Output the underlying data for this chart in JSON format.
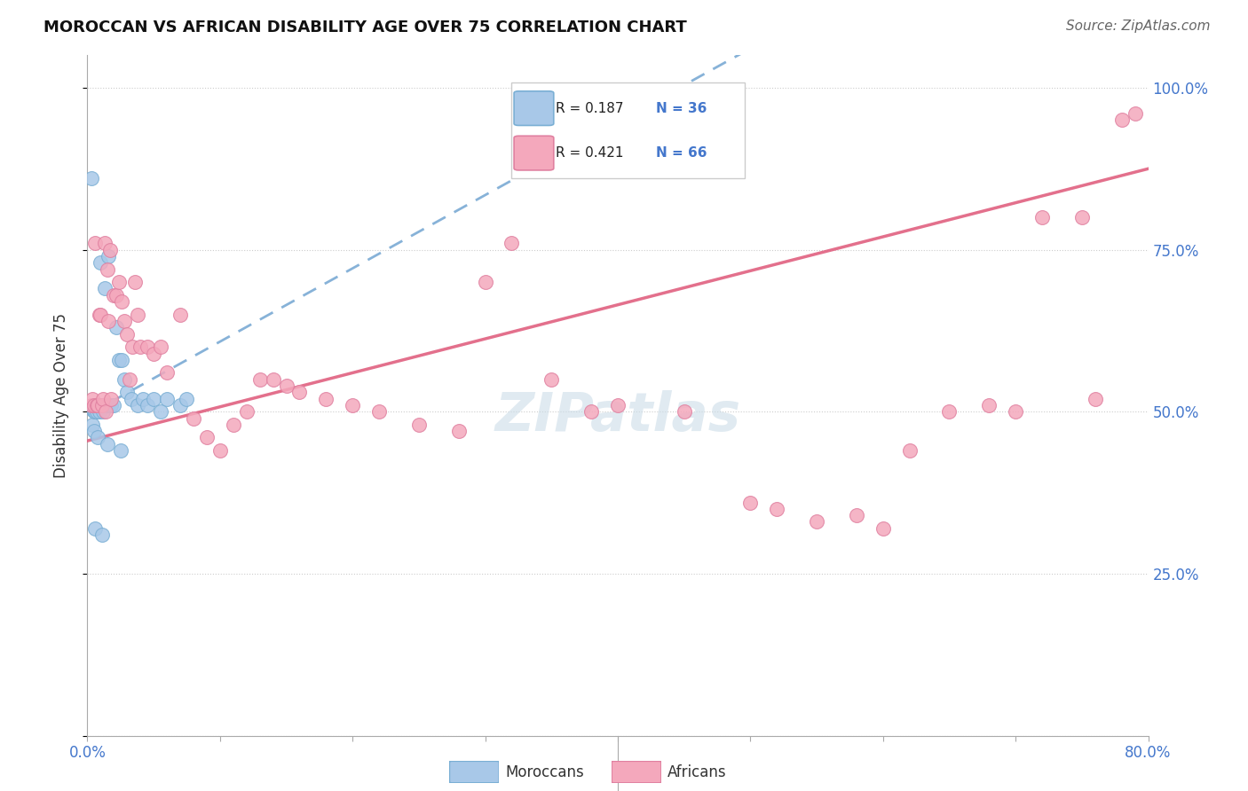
{
  "title": "MOROCCAN VS AFRICAN DISABILITY AGE OVER 75 CORRELATION CHART",
  "source": "Source: ZipAtlas.com",
  "ylabel": "Disability Age Over 75",
  "moroccan_color": "#a8c8e8",
  "moroccan_edge": "#7aafd4",
  "african_color": "#f4a8bc",
  "african_edge": "#e080a0",
  "moroccan_line_color": "#7aaad4",
  "african_line_color": "#e06080",
  "watermark_color": "#ccdde8",
  "label_color": "#4477cc",
  "moroccan_R": "0.187",
  "moroccan_N": "36",
  "african_R": "0.421",
  "african_N": "66",
  "moroccans_x": [
    0.3,
    0.4,
    0.5,
    0.5,
    0.6,
    0.6,
    0.7,
    0.8,
    0.9,
    1.0,
    1.0,
    1.1,
    1.2,
    1.3,
    1.5,
    1.6,
    1.8,
    2.0,
    2.2,
    2.4,
    2.6,
    2.8,
    3.0,
    3.3,
    3.8,
    4.2,
    4.5,
    5.0,
    5.5,
    6.0,
    7.0,
    7.5,
    0.5,
    0.8,
    1.5,
    2.5
  ],
  "moroccans_y": [
    86,
    48,
    50,
    51,
    32,
    50,
    50,
    51,
    50,
    51,
    73,
    31,
    50,
    69,
    51,
    74,
    51,
    51,
    63,
    58,
    58,
    55,
    53,
    52,
    51,
    52,
    51,
    52,
    50,
    52,
    51,
    52,
    47,
    46,
    45,
    44
  ],
  "africans_x": [
    0.3,
    0.4,
    0.5,
    0.6,
    0.7,
    0.8,
    0.9,
    1.0,
    1.1,
    1.2,
    1.3,
    1.4,
    1.5,
    1.6,
    1.7,
    1.8,
    2.0,
    2.2,
    2.4,
    2.6,
    2.8,
    3.0,
    3.2,
    3.4,
    3.6,
    3.8,
    4.0,
    4.5,
    5.0,
    5.5,
    6.0,
    7.0,
    8.0,
    9.0,
    10.0,
    11.0,
    12.0,
    13.0,
    14.0,
    15.0,
    16.0,
    18.0,
    20.0,
    22.0,
    25.0,
    28.0,
    30.0,
    32.0,
    35.0,
    38.0,
    40.0,
    45.0,
    50.0,
    52.0,
    55.0,
    58.0,
    60.0,
    62.0,
    65.0,
    68.0,
    70.0,
    72.0,
    75.0,
    76.0,
    78.0,
    79.0
  ],
  "africans_y": [
    51,
    52,
    51,
    76,
    51,
    51,
    65,
    65,
    51,
    52,
    76,
    50,
    72,
    64,
    75,
    52,
    68,
    68,
    70,
    67,
    64,
    62,
    55,
    60,
    70,
    65,
    60,
    60,
    59,
    60,
    56,
    65,
    49,
    46,
    44,
    48,
    50,
    55,
    55,
    54,
    53,
    52,
    51,
    50,
    48,
    47,
    70,
    76,
    55,
    50,
    51,
    50,
    36,
    35,
    33,
    34,
    32,
    44,
    50,
    51,
    50,
    80,
    80,
    52,
    95,
    96
  ],
  "xlim": [
    0.0,
    0.8
  ],
  "ylim": [
    0.0,
    1.05
  ],
  "x_ticks": [
    0.0,
    0.1,
    0.2,
    0.3,
    0.4,
    0.5,
    0.6,
    0.7,
    0.8
  ],
  "y_ticks": [
    0.0,
    0.25,
    0.5,
    0.75,
    1.0
  ],
  "right_y_labels": [
    "25.0%",
    "50.0%",
    "75.0%",
    "100.0%"
  ],
  "right_y_ticks": [
    0.25,
    0.5,
    0.75,
    1.0
  ]
}
